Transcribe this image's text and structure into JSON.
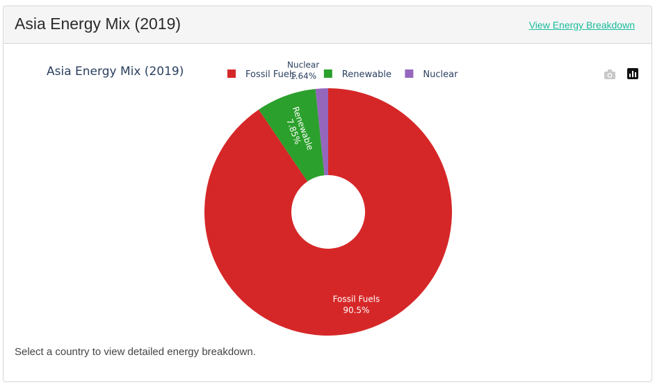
{
  "header": {
    "title": "Asia Energy Mix (2019)",
    "link_label": "View Energy Breakdown"
  },
  "footer": {
    "hint": "Select a country to view detailed energy breakdown."
  },
  "modebar": {
    "icons": [
      "camera-icon",
      "plotly-logo-icon"
    ]
  },
  "chart_data": {
    "type": "pie",
    "hole": true,
    "title": "Asia Energy Mix (2019)",
    "legend_position": "top",
    "slices": [
      {
        "label": "Fossil Fuels",
        "value": 90.5,
        "text": "90.5%",
        "color": "#d62728"
      },
      {
        "label": "Renewable",
        "value": 7.85,
        "text": "7.85%",
        "color": "#2ca02c"
      },
      {
        "label": "Nuclear",
        "value": 1.64,
        "text": "1.64%",
        "color": "#9467bd"
      }
    ]
  }
}
